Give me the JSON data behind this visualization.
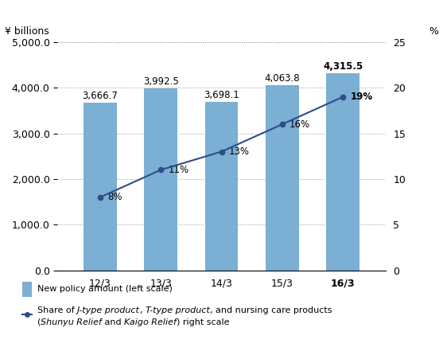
{
  "categories": [
    "12/3",
    "13/3",
    "14/3",
    "15/3",
    "16/3"
  ],
  "bar_values": [
    3666.7,
    3992.5,
    3698.1,
    4063.8,
    4315.5
  ],
  "bar_labels": [
    "3,666.7",
    "3,992.5",
    "3,698.1",
    "4,063.8",
    "4,315.5"
  ],
  "bar_labels_bold": [
    false,
    false,
    false,
    false,
    true
  ],
  "line_values_pct": [
    8,
    11,
    13,
    16,
    19
  ],
  "line_labels": [
    "8%",
    "11%",
    "13%",
    "16%",
    "19%"
  ],
  "line_labels_bold": [
    false,
    false,
    false,
    false,
    true
  ],
  "bar_color": "#7bafd4",
  "line_color": "#2e4d8a",
  "marker_color": "#2e4d8a",
  "left_ylim": [
    0,
    5000
  ],
  "left_yticks": [
    0.0,
    1000.0,
    2000.0,
    3000.0,
    4000.0,
    5000.0
  ],
  "left_yticklabels": [
    "0.0",
    "1,000.0",
    "2,000.0",
    "3,000.0",
    "4,000.0",
    "5,000.0"
  ],
  "right_ylim": [
    0,
    25
  ],
  "right_yticks": [
    0,
    5,
    10,
    15,
    20,
    25
  ],
  "right_yticklabels": [
    "0",
    "5",
    "10",
    "15",
    "20",
    "25"
  ],
  "top_left_label": "¥ billions",
  "top_right_label": "%",
  "bg_color": "#ffffff",
  "grid_color": "#999999",
  "tick_fontsize": 9,
  "bar_label_fontsize": 8.5,
  "line_label_fontsize": 8.5,
  "legend_bar_label": "New policy amount (left scale)",
  "legend_line_normal1": "Share of ",
  "legend_line_italic1": "J-type product",
  "legend_line_normal2": ", ",
  "legend_line_italic2": "T-type product",
  "legend_line_normal3": ", and nursing care products",
  "legend_line2_normal1": "(",
  "legend_line2_italic1": "Shunyu Relief",
  "legend_line2_normal2": " and ",
  "legend_line2_italic2": "Kaigo Relief",
  "legend_line2_normal3": ") right scale"
}
